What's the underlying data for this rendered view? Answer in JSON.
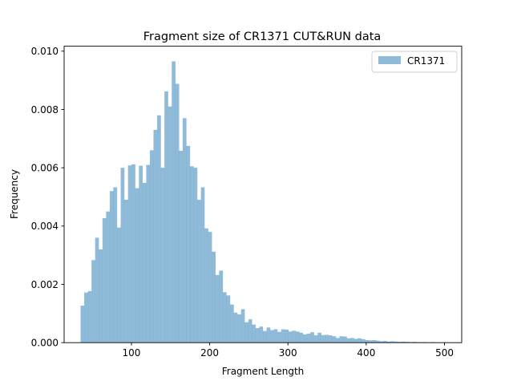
{
  "chart_data": {
    "type": "bar",
    "title": "Fragment size of CR1371 CUT&RUN data",
    "xlabel": "Fragment Length",
    "ylabel": "Frequency",
    "xlim": [
      14,
      522
    ],
    "ylim": [
      0,
      0.01017
    ],
    "xticks": [
      100,
      200,
      300,
      400,
      500
    ],
    "xtick_labels": [
      "100",
      "200",
      "300",
      "400",
      "500"
    ],
    "yticks": [
      0,
      0.002,
      0.004,
      0.006,
      0.008,
      0.01
    ],
    "ytick_labels": [
      "0.000",
      "0.002",
      "0.004",
      "0.006",
      "0.008",
      "0.010"
    ],
    "legend_position": "top-right",
    "grid": false,
    "series": [
      {
        "name": "CR1371",
        "color": "#1f77b4",
        "alpha": 0.5,
        "bin_start": 35,
        "bin_width": 4.66,
        "values": [
          0.00127,
          0.00172,
          0.00177,
          0.00283,
          0.0036,
          0.0032,
          0.00427,
          0.0045,
          0.0052,
          0.00533,
          0.00395,
          0.006,
          0.0049,
          0.00608,
          0.00612,
          0.0053,
          0.00607,
          0.00548,
          0.0061,
          0.0066,
          0.0073,
          0.0078,
          0.006,
          0.00862,
          0.0081,
          0.00965,
          0.00888,
          0.00658,
          0.0077,
          0.00675,
          0.00605,
          0.006,
          0.0049,
          0.00533,
          0.00392,
          0.0038,
          0.00312,
          0.00232,
          0.00247,
          0.00173,
          0.00162,
          0.00131,
          0.00103,
          0.00097,
          0.00115,
          0.0007,
          0.0008,
          0.00062,
          0.0005,
          0.00055,
          0.0004,
          0.00052,
          0.00043,
          0.00046,
          0.00037,
          0.00046,
          0.00045,
          0.00038,
          0.00041,
          0.00038,
          0.00034,
          0.00028,
          0.00031,
          0.00036,
          0.00025,
          0.00034,
          0.00026,
          0.00027,
          0.00025,
          0.00022,
          0.00016,
          0.00022,
          0.00021,
          0.00015,
          0.00016,
          0.00013,
          0.00015,
          0.00012,
          9e-05,
          8e-05,
          9e-05,
          7e-05,
          5e-05,
          6e-05,
          4e-05,
          5e-05,
          4e-05,
          3e-05,
          4e-05,
          3e-05,
          2e-05,
          3e-05,
          2e-05,
          2e-05,
          2e-05,
          1e-05,
          2e-05,
          1e-05,
          1e-05,
          1e-05,
          1e-05,
          1e-05,
          1e-05,
          1e-05
        ]
      }
    ]
  }
}
